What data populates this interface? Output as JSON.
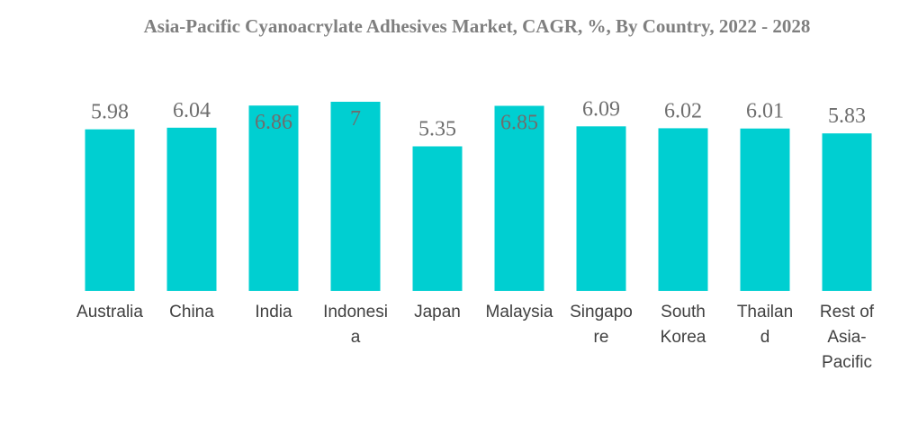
{
  "chart_data": {
    "type": "bar",
    "title": "Asia-Pacific Cyanoacrylate Adhesives Market, CAGR, %, By Country, 2022 - 2028",
    "xlabel": "",
    "ylabel": "",
    "categories": [
      "Australia",
      "China",
      "India",
      "Indonesia",
      "Japan",
      "Malaysia",
      "Singapore",
      "South Korea",
      "Thailand",
      "Rest of Asia-Pacific"
    ],
    "category_label_lines": [
      [
        "Australia"
      ],
      [
        "China"
      ],
      [
        "India"
      ],
      [
        "Indonesi",
        "a"
      ],
      [
        "Japan"
      ],
      [
        "Malaysia"
      ],
      [
        "Singapo",
        "re"
      ],
      [
        "South",
        "Korea"
      ],
      [
        "Thailan",
        "d"
      ],
      [
        "Rest of",
        "Asia-",
        "Pacific"
      ]
    ],
    "values": [
      5.98,
      6.04,
      6.86,
      7,
      5.35,
      6.85,
      6.09,
      6.02,
      6.01,
      5.83
    ],
    "value_labels": [
      "5.98",
      "6.04",
      "6.86",
      "7",
      "5.35",
      "6.85",
      "6.09",
      "6.02",
      "6.01",
      "5.83"
    ],
    "ylim": [
      0,
      7
    ],
    "grid": false,
    "legend": "none",
    "colors": {
      "bar": "#00cfd1",
      "title": "#7f7f7f",
      "value_label": "#6e6e6e",
      "category_label": "#404040"
    }
  }
}
